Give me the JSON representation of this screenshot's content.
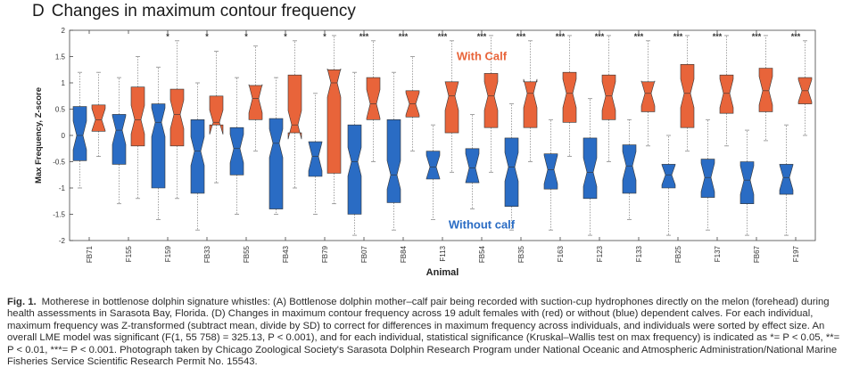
{
  "panel": {
    "letter": "D",
    "title": "Changes in maximum contour frequency"
  },
  "caption": {
    "label": "Fig. 1.",
    "text": "Motherese in bottlenose dolphin signature whistles: (A) Bottlenose dolphin mother–calf pair being recorded with suction-cup hydrophones directly on the melon (forehead) during health assessments in Sarasota Bay, Florida. (D) Changes in maximum contour frequency across 19 adult females with (red) or without (blue) dependent calves. For each individual, maximum frequency was Z-transformed (subtract mean, divide by SD) to correct for differences in maximum frequency across individuals, and individuals were sorted by effect size. An overall LME model was significant (F(1, 55 758) = 325.13, P < 0.001), and for each individual, statistical significance (Kruskal–Wallis test on max frequency) is indicated as *= P < 0.05, **= P < 0.01, ***= P < 0.001. Photograph taken by Chicago Zoological Society's Sarasota Dolphin Research Program under National Oceanic and Atmospheric Administration/National Marine Fisheries Service Scientific Research Permit No. 15543."
  },
  "chart_data": {
    "type": "boxplot",
    "xlabel": "Animal",
    "ylabel": "Max Frequency, Z-score",
    "ylim": [
      -2,
      2
    ],
    "yticks": [
      -2,
      -1.5,
      -1,
      -0.5,
      0,
      0.5,
      1,
      1.5,
      2
    ],
    "notched": true,
    "grid": false,
    "categories": [
      "FB71",
      "F155",
      "F159",
      "FB33",
      "FB55",
      "FB43",
      "FB79",
      "FB07",
      "FB84",
      "F113",
      "FB54",
      "FB35",
      "F163",
      "F123",
      "F133",
      "FB25",
      "F137",
      "FB67",
      "F197"
    ],
    "significance": [
      "",
      "",
      "*",
      "*",
      "*",
      "*",
      "*",
      "***",
      "***",
      "***",
      "***",
      "***",
      "***",
      "***",
      "***",
      "***",
      "***",
      "***",
      "***"
    ],
    "series": [
      {
        "name": "Without calf",
        "color": "#2a6cc4",
        "q1": [
          -0.48,
          -0.55,
          -1.0,
          -1.1,
          -0.75,
          -1.4,
          -0.78,
          -1.5,
          -1.28,
          -0.83,
          -0.9,
          -1.35,
          -1.02,
          -1.2,
          -1.1,
          -1.0,
          -1.18,
          -1.3,
          -1.12
        ],
        "median": [
          0.0,
          0.1,
          0.25,
          -0.3,
          -0.25,
          -0.15,
          -0.4,
          -0.5,
          -0.75,
          -0.6,
          -0.62,
          -0.6,
          -0.65,
          -0.7,
          -0.58,
          -0.75,
          -0.8,
          -0.85,
          -0.8
        ],
        "q3": [
          0.55,
          0.4,
          0.6,
          0.3,
          0.15,
          0.32,
          -0.12,
          0.2,
          0.3,
          -0.3,
          -0.25,
          -0.05,
          -0.35,
          -0.05,
          -0.18,
          -0.55,
          -0.45,
          -0.5,
          -0.55
        ],
        "whisker_low": [
          -1.0,
          -1.3,
          -1.6,
          -1.8,
          -1.5,
          -1.5,
          -1.5,
          -1.9,
          -1.8,
          -1.6,
          -1.4,
          -1.8,
          -1.8,
          -1.9,
          -1.6,
          -1.9,
          -1.8,
          -1.9,
          -1.9
        ],
        "whisker_high": [
          1.2,
          1.1,
          1.3,
          1.0,
          1.1,
          1.1,
          0.8,
          1.2,
          1.2,
          0.2,
          0.4,
          0.6,
          0.3,
          0.7,
          0.3,
          0.0,
          0.3,
          0.1,
          0.2
        ]
      },
      {
        "name": "With Calf",
        "color": "#e8643a",
        "q1": [
          0.08,
          -0.2,
          -0.2,
          0.2,
          0.3,
          0.05,
          -0.72,
          0.3,
          0.35,
          0.05,
          0.15,
          0.15,
          0.25,
          0.3,
          0.45,
          0.15,
          0.42,
          0.45,
          0.6
        ],
        "median": [
          0.3,
          0.3,
          0.4,
          0.25,
          0.7,
          0.2,
          1.0,
          0.6,
          0.6,
          0.75,
          0.75,
          0.8,
          0.8,
          0.75,
          0.8,
          0.8,
          0.8,
          0.85,
          0.85
        ],
        "q3": [
          0.58,
          0.92,
          0.88,
          0.75,
          0.95,
          1.15,
          1.25,
          1.1,
          0.85,
          1.02,
          1.18,
          1.02,
          1.2,
          1.15,
          1.02,
          1.35,
          1.15,
          1.28,
          1.1
        ],
        "whisker_low": [
          -0.4,
          -1.2,
          -1.2,
          -0.9,
          -0.3,
          -1.0,
          -1.3,
          -0.5,
          -0.3,
          -0.7,
          -0.7,
          -0.5,
          -0.4,
          -0.5,
          -0.2,
          -0.3,
          -0.2,
          -0.1,
          0.0
        ],
        "whisker_high": [
          1.2,
          1.5,
          1.8,
          1.6,
          1.7,
          1.8,
          1.9,
          1.8,
          1.5,
          1.8,
          1.9,
          1.8,
          1.9,
          1.9,
          1.8,
          1.9,
          1.9,
          1.9,
          1.8
        ]
      }
    ],
    "annotations": [
      {
        "text": "With Calf",
        "color": "#e8643a",
        "x_category": 10,
        "y": 1.5
      },
      {
        "text": "Without calf",
        "color": "#2a6cc4",
        "x_category": 10,
        "y": -1.7
      }
    ]
  }
}
